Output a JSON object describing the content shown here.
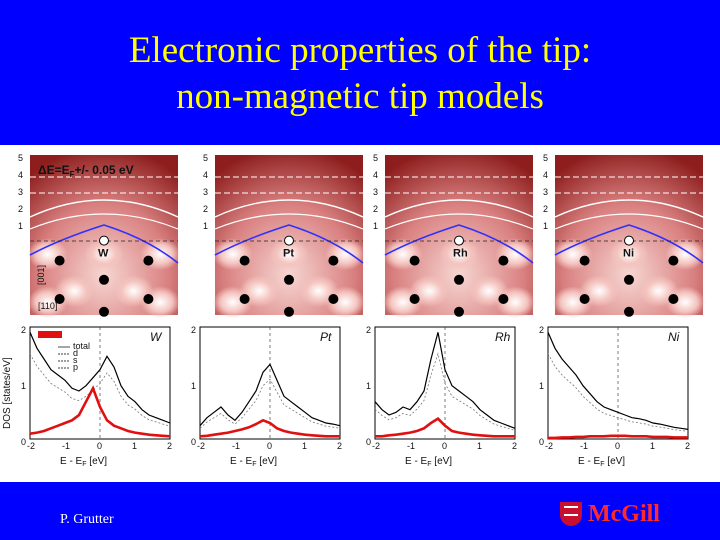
{
  "slide": {
    "title_line1": "Electronic properties of the tip:",
    "title_line2": "non-magnetic tip models",
    "author": "P. Grutter",
    "logo_text": "McGill"
  },
  "figure": {
    "energy_window_label": "ΔE=E",
    "energy_window_sub": "F",
    "energy_window_rest": "+/- 0.05 eV",
    "axis_z_label": "[001]",
    "axis_x_label": "[110]",
    "height_ticks": [
      "5",
      "4",
      "3",
      "2",
      "1"
    ],
    "dos_y_label": "DOS [states/eV]",
    "dos_x_label": "E - E",
    "dos_x_sub": "F",
    "dos_x_units": "[eV]",
    "dos_y_ticks": [
      "2",
      "1",
      "0"
    ],
    "dos_x_ticks": [
      "-2",
      "-1",
      "0",
      "1",
      "2"
    ],
    "legend_items": [
      "total",
      "d",
      "s",
      "p"
    ],
    "panels": [
      {
        "element": "W",
        "dos_label": "W"
      },
      {
        "element": "Pt",
        "dos_label": "Pt"
      },
      {
        "element": "Rh",
        "dos_label": "Rh"
      },
      {
        "element": "Ni",
        "dos_label": "Ni"
      }
    ]
  },
  "colors": {
    "background": "#0000ff",
    "title": "#ffff00",
    "map_dark": "#b0302a",
    "map_light": "#f6d6d2",
    "dos_red": "#e01010",
    "contour_blue": "#3030ff",
    "logo": "#ff2a2a"
  }
}
